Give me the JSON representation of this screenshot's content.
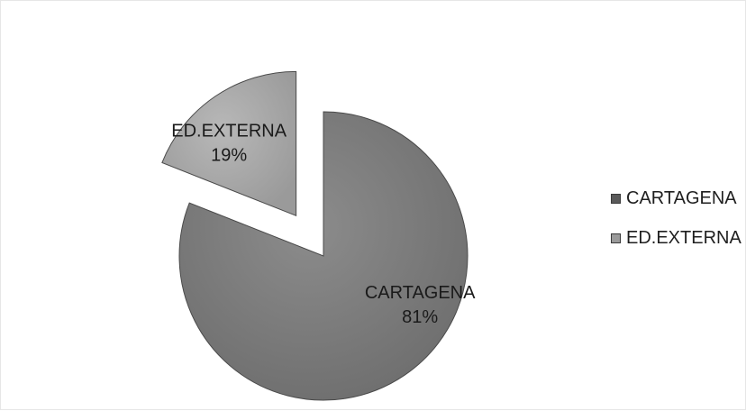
{
  "chart_data": {
    "type": "pie",
    "title": "",
    "categories": [
      "CARTAGENA",
      "ED.EXTERNA"
    ],
    "values": [
      81,
      19
    ],
    "value_suffix": "%",
    "exploded": [
      "ED.EXTERNA"
    ],
    "legend_position": "right",
    "slice_labels": [
      {
        "category": "CARTAGENA",
        "value_text": "81%"
      },
      {
        "category": "ED.EXTERNA",
        "value_text": "19%"
      }
    ],
    "colors": {
      "CARTAGENA": "#7a7a7a",
      "ED.EXTERNA": "#a8a8a8"
    }
  },
  "legend": {
    "items": [
      {
        "label": "CARTAGENA",
        "color": "#5a5a5a"
      },
      {
        "label": "ED.EXTERNA",
        "color": "#9a9a9a"
      }
    ]
  }
}
